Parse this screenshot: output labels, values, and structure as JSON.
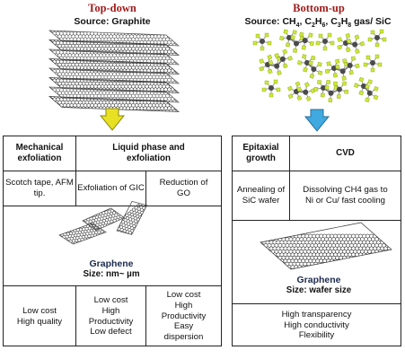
{
  "top_down": {
    "heading": "Top-down",
    "source": "Source: Graphite",
    "col1_header": "Mechanical exfoliation",
    "col23_header": "Liquid phase and exfoliation",
    "col1_method": "Scotch tape, AFM tip.",
    "col2_method": "Exfoliation of GIC",
    "col3_method": "Reduction of GO",
    "product_name": "Graphene",
    "product_size": "Size: nm~ µm",
    "col1_props": [
      "Low cost",
      "High quality"
    ],
    "col2_props": [
      "Low cost",
      "High",
      "Productivity",
      "Low defect"
    ],
    "col3_props": [
      "Low cost",
      "High",
      "Productivity",
      "Easy",
      "dispersion"
    ],
    "arrow_color": "#e8e022"
  },
  "bottom_up": {
    "heading": "Bottom-up",
    "source_prefix": "Source: CH",
    "source_parts": [
      "4",
      ", C",
      "2",
      "H",
      "6",
      ", C",
      "3",
      "H",
      "8"
    ],
    "source_suffix": " gas/ SiC",
    "col1_header": "Epitaxial growth",
    "col2_header": "CVD",
    "col1_method": "Annealing of SiC wafer",
    "col2_method": "Dissolving CH4 gas to Ni or Cu/ fast cooling",
    "product_name": "Graphene",
    "product_size": "Size: wafer size",
    "props": [
      "High transparency",
      "High conductivity",
      "Flexibility"
    ],
    "arrow_color": "#3fa9e0"
  },
  "colors": {
    "heading": "#a11b1b",
    "graphene_label": "#1c2a4f",
    "molecule_carbon": "#4a4a4a",
    "molecule_hydrogen": "#cde838"
  }
}
